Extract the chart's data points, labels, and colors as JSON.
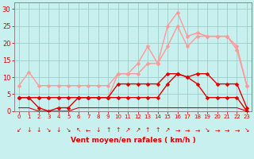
{
  "background_color": "#c8f0ee",
  "grid_color": "#a0cccc",
  "xlabel": "Vent moyen/en rafales ( km/h )",
  "xlim": [
    -0.5,
    23.5
  ],
  "ylim": [
    0,
    32
  ],
  "yticks": [
    0,
    5,
    10,
    15,
    20,
    25,
    30
  ],
  "xticks": [
    0,
    1,
    2,
    3,
    4,
    5,
    6,
    7,
    8,
    9,
    10,
    11,
    12,
    13,
    14,
    15,
    16,
    17,
    18,
    19,
    20,
    21,
    22,
    23
  ],
  "series": [
    {
      "x": [
        0,
        1,
        2,
        3,
        4,
        5,
        6,
        7,
        8,
        9,
        10,
        11,
        12,
        13,
        14,
        15,
        16,
        17,
        18,
        19,
        20,
        21,
        22,
        23
      ],
      "y": [
        7.5,
        11.5,
        7.5,
        7.5,
        7.5,
        7.5,
        7.5,
        7.5,
        7.5,
        7.5,
        11,
        11,
        11,
        14,
        14,
        19,
        25,
        19,
        22,
        22,
        22,
        22,
        19,
        7.5
      ],
      "color": "#ff9999",
      "lw": 1.0,
      "marker": "D",
      "ms": 2.5,
      "mew": 0.3
    },
    {
      "x": [
        0,
        1,
        2,
        3,
        4,
        5,
        6,
        7,
        8,
        9,
        10,
        11,
        12,
        13,
        14,
        15,
        16,
        17,
        18,
        19,
        20,
        21,
        22,
        23
      ],
      "y": [
        4,
        4,
        4,
        4,
        4,
        4,
        4,
        4,
        4,
        4,
        11,
        11,
        14,
        19,
        14,
        25,
        29,
        22,
        23,
        22,
        22,
        22,
        18,
        7.5
      ],
      "color": "#ff9999",
      "lw": 1.0,
      "marker": "D",
      "ms": 2.5,
      "mew": 0.3
    },
    {
      "x": [
        0,
        1,
        2,
        3,
        4,
        5,
        6,
        7,
        8,
        9,
        10,
        11,
        12,
        13,
        14,
        15,
        16,
        17,
        18,
        19,
        20,
        21,
        22,
        23
      ],
      "y": [
        4,
        4,
        4,
        4,
        4,
        4,
        4,
        4,
        4,
        4,
        8,
        8,
        8,
        8,
        8,
        11,
        11,
        10,
        11,
        11,
        8,
        8,
        8,
        1
      ],
      "color": "#dd0000",
      "lw": 1.0,
      "marker": "D",
      "ms": 2.5,
      "mew": 0.3
    },
    {
      "x": [
        0,
        1,
        2,
        3,
        4,
        5,
        6,
        7,
        8,
        9,
        10,
        11,
        12,
        13,
        14,
        15,
        16,
        17,
        18,
        19,
        20,
        21,
        22,
        23
      ],
      "y": [
        4,
        4,
        1,
        0,
        1,
        1,
        4,
        4,
        4,
        4,
        4,
        4,
        4,
        4,
        4,
        8,
        11,
        10,
        8,
        4,
        4,
        4,
        4,
        0
      ],
      "color": "#dd0000",
      "lw": 1.0,
      "marker": "D",
      "ms": 2.5,
      "mew": 0.3
    },
    {
      "x": [
        0,
        1,
        2,
        3,
        4,
        5,
        6,
        7,
        8,
        9,
        10,
        11,
        12,
        13,
        14,
        15,
        16,
        17,
        18,
        19,
        20,
        21,
        22,
        23
      ],
      "y": [
        1,
        1,
        0,
        0,
        0,
        0,
        1,
        1,
        1,
        1,
        1,
        1,
        1,
        1,
        1,
        1,
        1,
        1,
        1,
        1,
        1,
        1,
        1,
        0
      ],
      "color": "#dd0000",
      "lw": 0.8,
      "marker": null,
      "ms": 0,
      "mew": 0
    }
  ],
  "wind_arrows": [
    "↙",
    "↓",
    "↓",
    "↘",
    "↓",
    "↘",
    "↖",
    "←",
    "↓",
    "↑",
    "↑",
    "↗",
    "↗",
    "↑",
    "↑",
    "↗",
    "→",
    "→",
    "→",
    "↘",
    "→",
    "→",
    "→",
    "↘"
  ]
}
